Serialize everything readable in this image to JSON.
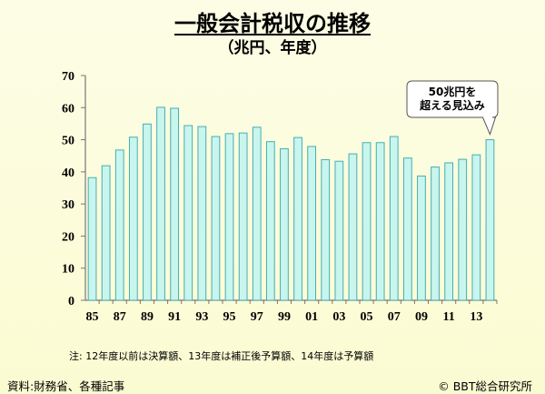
{
  "header": {
    "title": "一般会計税収の推移",
    "subtitle": "（兆円、年度）"
  },
  "footer": {
    "note": "注: 12年度以前は決算額、13年度は補正後予算額、14年度は予算額",
    "source": "資料:財務省、各種記事",
    "copyright": "© BBT総合研究所"
  },
  "colors": {
    "bar_fill": "#c9f5ef",
    "bar_stroke": "#46aeb0",
    "axis": "#777777"
  },
  "chart_data": {
    "type": "bar",
    "title": "一般会計税収の推移",
    "unit_label": "（兆円、年度）",
    "categories": [
      "85",
      "86",
      "87",
      "88",
      "89",
      "90",
      "91",
      "92",
      "93",
      "94",
      "95",
      "96",
      "97",
      "98",
      "99",
      "00",
      "01",
      "02",
      "03",
      "04",
      "05",
      "06",
      "07",
      "08",
      "09",
      "10",
      "11",
      "12",
      "13",
      "14"
    ],
    "x_tick_labels": [
      "85",
      "87",
      "89",
      "91",
      "93",
      "95",
      "97",
      "99",
      "01",
      "03",
      "05",
      "07",
      "09",
      "11",
      "13"
    ],
    "values": [
      38.2,
      41.9,
      46.8,
      50.8,
      54.9,
      60.1,
      59.8,
      54.4,
      54.1,
      51.0,
      51.9,
      52.1,
      53.9,
      49.4,
      47.2,
      50.7,
      47.9,
      43.8,
      43.3,
      45.6,
      49.1,
      49.1,
      51.0,
      44.3,
      38.7,
      41.5,
      42.8,
      43.9,
      45.3,
      50.0
    ],
    "ylim": [
      0,
      70
    ],
    "yticks": [
      0,
      10,
      20,
      30,
      40,
      50,
      60,
      70
    ],
    "grid": false,
    "annotation": {
      "category": "14",
      "lines": [
        "50兆円を",
        "超える見込み"
      ]
    }
  }
}
